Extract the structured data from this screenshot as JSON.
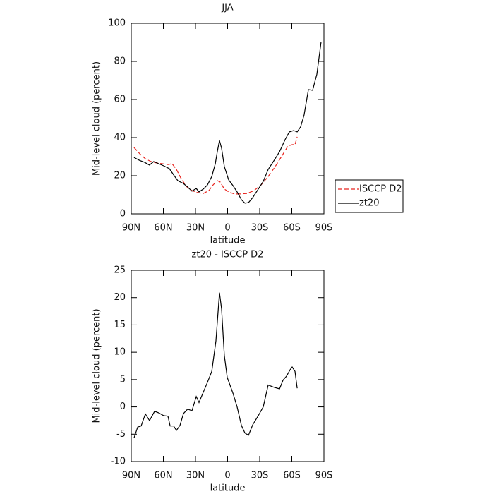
{
  "chart_data": [
    {
      "type": "line",
      "title": "JJA",
      "xlabel": "latitude",
      "ylabel": "Mid-level cloud (percent)",
      "xlim": [
        90,
        -90
      ],
      "xticks": [
        {
          "value": 90,
          "label": "90N"
        },
        {
          "value": 60,
          "label": "60N"
        },
        {
          "value": 30,
          "label": "30N"
        },
        0,
        {
          "value": -30,
          "label": "30S"
        },
        {
          "value": -60,
          "label": "60S"
        },
        {
          "value": -90,
          "label": "90S"
        }
      ],
      "ylim": [
        0,
        100
      ],
      "yticks": [
        0,
        20,
        40,
        60,
        80,
        100
      ],
      "legend": "right",
      "series": [
        {
          "name": "ISCCP D2",
          "color": "#e8231d",
          "dash": true,
          "x": [
            87.4,
            82,
            76.8,
            71.5,
            66.3,
            61,
            55.7,
            51.8,
            47.8,
            43.8,
            38.6,
            33.3,
            28,
            22.7,
            17.5,
            13.5,
            9.6,
            6.9,
            3,
            -1,
            -6.3,
            -11.5,
            -18.1,
            -24.7,
            -31.3,
            -37.9,
            -44.5,
            -51.1,
            -56.4,
            -60.3,
            -63,
            -65
          ],
          "values": [
            34.8,
            31.5,
            28.9,
            27.4,
            26.7,
            26.3,
            25.9,
            26.3,
            23.3,
            18.9,
            14.4,
            12.2,
            11.1,
            10.7,
            12.2,
            15.2,
            17.4,
            16.7,
            13,
            11.5,
            10.4,
            10.4,
            10.7,
            12.2,
            15.2,
            19.6,
            24.8,
            30.7,
            35.6,
            36.3,
            36.3,
            40.4
          ]
        },
        {
          "name": "zt20",
          "color": "#000000",
          "dash": false,
          "x": [
            87.4,
            82,
            77.5,
            73,
            69,
            64.3,
            59.7,
            54.4,
            50.4,
            46.5,
            41.2,
            37.3,
            33.3,
            29.3,
            26.7,
            22.7,
            18.8,
            14.8,
            11.5,
            9.6,
            7.6,
            5.6,
            3,
            -1,
            -5,
            -8.9,
            -12.9,
            -16.2,
            -19.5,
            -23.4,
            -28.7,
            -33.3,
            -37.9,
            -43.2,
            -48.5,
            -53.7,
            -57.7,
            -61.7,
            -65,
            -68.2,
            -71.5,
            -75.5,
            -79.4,
            -83.4,
            -87.3
          ],
          "values": [
            29.6,
            28,
            27,
            25.6,
            27.4,
            26.3,
            25.2,
            23.7,
            20.4,
            17.4,
            15.9,
            14.1,
            11.9,
            13.3,
            11.5,
            13,
            15.2,
            19.6,
            26.3,
            32.6,
            38.5,
            34.4,
            24.8,
            17.8,
            14.8,
            11.5,
            7.4,
            5.6,
            5.9,
            8.5,
            13,
            17,
            23.3,
            27.8,
            32.6,
            38.9,
            43,
            43.7,
            43,
            45.6,
            51.9,
            65.2,
            64.8,
            73.3,
            90
          ]
        }
      ]
    },
    {
      "type": "line",
      "title": "zt20 - ISCCP D2",
      "xlabel": "latitude",
      "ylabel": "Mid-level cloud (percent)",
      "xlim": [
        90,
        -90
      ],
      "xticks": [
        {
          "value": 90,
          "label": "90N"
        },
        {
          "value": 60,
          "label": "60N"
        },
        {
          "value": 30,
          "label": "30N"
        },
        0,
        {
          "value": -30,
          "label": "30S"
        },
        {
          "value": -60,
          "label": "60S"
        },
        {
          "value": -90,
          "label": "90S"
        }
      ],
      "ylim": [
        -10,
        25
      ],
      "yticks": [
        -10,
        -5,
        0,
        5,
        10,
        15,
        20,
        25
      ],
      "series": [
        {
          "color": "#000000",
          "dash": false,
          "x": [
            87.4,
            84,
            80.8,
            76.8,
            72.9,
            68.2,
            64.3,
            59.7,
            55.7,
            53.7,
            50.4,
            47.8,
            44.5,
            41.2,
            37.3,
            33.3,
            29.3,
            26.7,
            22.7,
            18.8,
            14.8,
            10.9,
            7.6,
            5.6,
            3,
            0.3,
            -5,
            -8.9,
            -12.9,
            -16.2,
            -19.5,
            -23.4,
            -28.7,
            -33.3,
            -37.9,
            -43.2,
            -48.5,
            -51.8,
            -55,
            -58.4,
            -60.3,
            -63,
            -65
          ],
          "values": [
            -5.7,
            -3.7,
            -3.5,
            -1.3,
            -2.5,
            -0.8,
            -1.1,
            -1.6,
            -1.7,
            -3.5,
            -3.5,
            -4.3,
            -3.4,
            -1.2,
            -0.4,
            -0.7,
            1.9,
            0.8,
            2.7,
            4.5,
            6.5,
            12.1,
            20.9,
            17.9,
            9.4,
            5.4,
            2.5,
            0,
            -3.4,
            -4.8,
            -5.2,
            -3.3,
            -1.6,
            0,
            4,
            3.6,
            3.3,
            4.9,
            5.6,
            6.8,
            7.3,
            6.5,
            3.4
          ]
        }
      ]
    }
  ]
}
